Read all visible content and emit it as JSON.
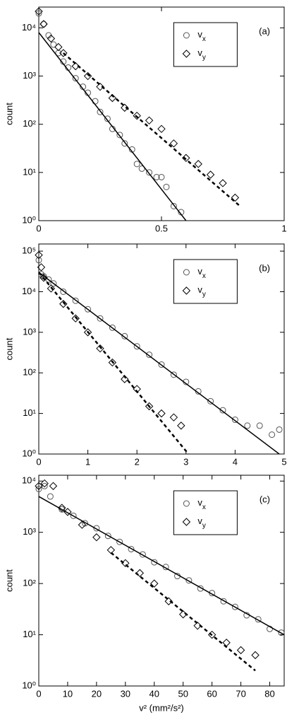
{
  "chart_data": [
    {
      "type": "scatter",
      "panel_label": "(a)",
      "ylabel": "count",
      "log_y": true,
      "xlim": [
        0,
        1
      ],
      "xticks": [
        0,
        0.5,
        1
      ],
      "ylim": [
        1,
        27000
      ],
      "yticks": [
        {
          "value": 1,
          "label": "10⁰"
        },
        {
          "value": 10,
          "label": "10¹"
        },
        {
          "value": 100,
          "label": "10²"
        },
        {
          "value": 1000,
          "label": "10³"
        },
        {
          "value": 10000,
          "label": "10⁴"
        }
      ],
      "series": [
        {
          "name": "vx",
          "marker": "circle",
          "color": "#555555",
          "x": [
            0,
            0.02,
            0.04,
            0.06,
            0.08,
            0.1,
            0.12,
            0.15,
            0.18,
            0.2,
            0.23,
            0.25,
            0.28,
            0.3,
            0.33,
            0.35,
            0.38,
            0.4,
            0.42,
            0.45,
            0.48,
            0.5,
            0.52,
            0.55,
            0.58
          ],
          "values": [
            20000,
            12000,
            7000,
            4500,
            3000,
            2000,
            1500,
            900,
            600,
            450,
            300,
            180,
            130,
            80,
            60,
            40,
            30,
            15,
            12,
            10,
            8,
            8,
            5,
            2,
            1.5
          ]
        },
        {
          "name": "vy",
          "marker": "diamond",
          "color": "#000000",
          "x": [
            0,
            0.02,
            0.05,
            0.08,
            0.1,
            0.15,
            0.2,
            0.25,
            0.3,
            0.35,
            0.4,
            0.45,
            0.5,
            0.55,
            0.6,
            0.65,
            0.7,
            0.75,
            0.8
          ],
          "values": [
            22000,
            12000,
            6000,
            4000,
            3000,
            1600,
            1000,
            600,
            350,
            220,
            150,
            120,
            80,
            40,
            20,
            15,
            9,
            6,
            3
          ]
        },
        {
          "line": "solid",
          "color": "#000000",
          "x": [
            0,
            0.6
          ],
          "values": [
            8000,
            1
          ]
        },
        {
          "line": "dashed",
          "color": "#000000",
          "x": [
            0.1,
            0.82
          ],
          "values": [
            3000,
            2
          ]
        }
      ]
    },
    {
      "type": "scatter",
      "panel_label": "(b)",
      "ylabel": "count",
      "log_y": true,
      "xlim": [
        0,
        5
      ],
      "xticks": [
        0,
        1,
        2,
        3,
        4,
        5
      ],
      "ylim": [
        1,
        150000
      ],
      "yticks": [
        {
          "value": 1,
          "label": "10⁰"
        },
        {
          "value": 10,
          "label": "10¹"
        },
        {
          "value": 100,
          "label": "10²"
        },
        {
          "value": 1000,
          "label": "10³"
        },
        {
          "value": 10000,
          "label": "10⁴"
        },
        {
          "value": 100000,
          "label": "10⁵"
        }
      ],
      "series": [
        {
          "name": "vx",
          "marker": "circle",
          "color": "#555555",
          "x": [
            0,
            0.05,
            0.1,
            0.2,
            0.3,
            0.5,
            0.75,
            1,
            1.25,
            1.5,
            1.75,
            2,
            2.25,
            2.5,
            2.75,
            3,
            3.25,
            3.5,
            3.75,
            4,
            4.25,
            4.5,
            4.75,
            4.9
          ],
          "values": [
            60000,
            27000,
            24000,
            20000,
            16000,
            10000,
            6000,
            3700,
            2200,
            1300,
            800,
            450,
            280,
            160,
            90,
            60,
            35,
            20,
            12,
            7,
            5,
            5,
            3,
            4
          ]
        },
        {
          "name": "vy",
          "marker": "diamond",
          "color": "#000000",
          "x": [
            0,
            0.05,
            0.1,
            0.25,
            0.5,
            0.75,
            1,
            1.25,
            1.5,
            1.75,
            2,
            2.25,
            2.5,
            2.75,
            2.9
          ],
          "values": [
            80000,
            40000,
            22000,
            12000,
            5000,
            2200,
            1000,
            400,
            180,
            70,
            40,
            15,
            10,
            8,
            5
          ]
        },
        {
          "line": "solid",
          "color": "#000000",
          "x": [
            0,
            4.9
          ],
          "values": [
            30000,
            1
          ]
        },
        {
          "line": "dashed",
          "color": "#000000",
          "x": [
            0,
            3.05
          ],
          "values": [
            30000,
            1
          ]
        }
      ]
    },
    {
      "type": "scatter",
      "panel_label": "(c)",
      "ylabel": "count",
      "xlabel": "v² (mm²/s²)",
      "log_y": true,
      "xlim": [
        0,
        85
      ],
      "xticks": [
        0,
        10,
        20,
        30,
        40,
        50,
        60,
        70,
        80
      ],
      "ylim": [
        1,
        13000
      ],
      "yticks": [
        {
          "value": 1,
          "label": "10⁰"
        },
        {
          "value": 10,
          "label": "10¹"
        },
        {
          "value": 100,
          "label": "10²"
        },
        {
          "value": 1000,
          "label": "10³"
        },
        {
          "value": 10000,
          "label": "10⁴"
        }
      ],
      "series": [
        {
          "name": "vx",
          "marker": "circle",
          "color": "#555555",
          "x": [
            0,
            2,
            4,
            8,
            12,
            16,
            20,
            24,
            28,
            32,
            36,
            40,
            44,
            48,
            52,
            56,
            60,
            64,
            68,
            72,
            76,
            80,
            84
          ],
          "values": [
            7000,
            8000,
            5000,
            2800,
            2100,
            1500,
            1200,
            850,
            650,
            470,
            370,
            260,
            210,
            140,
            115,
            80,
            65,
            45,
            35,
            24,
            20,
            13,
            11
          ]
        },
        {
          "name": "vy",
          "marker": "diamond",
          "color": "#000000",
          "x": [
            0,
            2,
            5,
            8,
            10,
            15,
            20,
            25,
            30,
            35,
            40,
            45,
            50,
            55,
            60,
            65,
            70,
            75
          ],
          "values": [
            8000,
            9000,
            8000,
            3000,
            2500,
            1400,
            800,
            450,
            250,
            160,
            100,
            45,
            25,
            15,
            10,
            7,
            5,
            4
          ]
        },
        {
          "line": "solid",
          "color": "#000000",
          "x": [
            0,
            85
          ],
          "values": [
            5000,
            10
          ]
        },
        {
          "line": "dashed",
          "color": "#000000",
          "x": [
            25,
            75
          ],
          "values": [
            400,
            2
          ]
        }
      ]
    }
  ]
}
